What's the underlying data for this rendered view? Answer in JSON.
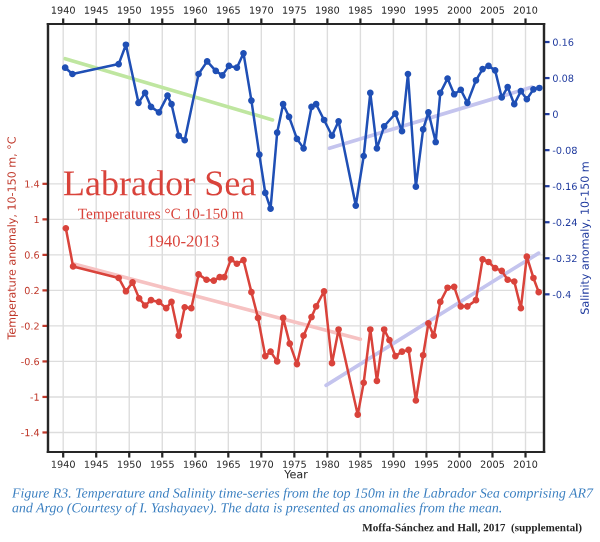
{
  "chart_data": {
    "type": "line",
    "title": "Labrador Sea",
    "subtitle": "Temperatures °C 10-150 m",
    "xlabel": "Year",
    "ylabel": "Temperature anomaly, 10-150 m, °C",
    "y2label": "Salinity anomaly, 10-150 m",
    "annotations": [
      "1940-2013",
      "Figure R3. Temperature and Salinity time-series from the top 150m in the Labrador Sea comprising AR7 and Argo (Courtesy of I. Yashayaev). The data is presented as anomalies from the mean.",
      "Moffa-Sánchez and Hall, 2017  (supplemental)"
    ],
    "xlim": [
      1937.7,
      2012.8
    ],
    "xticks": [
      1940,
      1945,
      1950,
      1955,
      1960,
      1965,
      1970,
      1975,
      1980,
      1985,
      1990,
      1995,
      2000,
      2005,
      2010
    ],
    "x2lim": [
      1937.7,
      2012.8
    ],
    "x2ticks": [
      1940,
      1945,
      1950,
      1955,
      1960,
      1965,
      1970,
      1975,
      1980,
      1985,
      1990,
      1995,
      2000,
      2005,
      2010
    ],
    "ylim": [
      -1.62,
      3.2
    ],
    "yticks": [
      -1.4,
      -1,
      -0.6,
      -0.2,
      0.2,
      0.6,
      1,
      1.4
    ],
    "y2lim": [
      -0.75,
      0.2
    ],
    "y2ticks": [
      -0.4,
      -0.32,
      -0.24,
      -0.16,
      -0.08,
      0,
      0.08,
      0.16
    ],
    "grid": true,
    "legend": false,
    "marker": "circle",
    "line_style": "solid",
    "series": [
      {
        "type": "line",
        "marker": "none",
        "color": "#bfe6a0",
        "axis": "y2",
        "x": [
          1940.3,
          1971.7
        ],
        "values": [
          0.123,
          -0.013
        ]
      },
      {
        "type": "line",
        "marker": "none",
        "color": "#c4c4ee",
        "axis": "y2",
        "x": [
          1980.3,
          2011.0
        ],
        "values": [
          -0.076,
          0.06
        ]
      },
      {
        "type": "line",
        "marker": "none",
        "color": "#f6c2c2",
        "x": [
          1941.5,
          1985.0
        ],
        "values": [
          0.5,
          -0.35
        ]
      },
      {
        "type": "line",
        "marker": "none",
        "color": "#c4c4ee",
        "x": [
          1979.8,
          2012.0
        ],
        "values": [
          -0.87,
          0.62
        ]
      },
      {
        "color": "#1f4fb5",
        "axis": "y2",
        "x": [
          1940.3,
          1941.4,
          1948.4,
          1949.5,
          1951.4,
          1952.4,
          1953.3,
          1954.5,
          1955.8,
          1956.4,
          1957.5,
          1958.4,
          1960.5,
          1961.8,
          1963.1,
          1964.1,
          1965.1,
          1966.3,
          1967.3,
          1968.5,
          1969.7,
          1970.6,
          1971.4,
          1972.4,
          1973.3,
          1974.2,
          1975.4,
          1976.4,
          1977.6,
          1978.3,
          1979.5,
          1980.7,
          1981.7,
          1984.3,
          1985.5,
          1986.5,
          1987.5,
          1988.6,
          1990.3,
          1991.3,
          1992.2,
          1993.4,
          1994.5,
          1995.3,
          1996.4,
          1997.1,
          1998.2,
          1999.2,
          2000.2,
          2001.2,
          2002.5,
          2003.5,
          2004.4,
          2005.4,
          2006.4,
          2007.3,
          2008.3,
          2009.3,
          2010.2,
          2011.2,
          2012.1
        ],
        "values": [
          0.103,
          0.089,
          0.111,
          0.154,
          0.025,
          0.047,
          0.016,
          0.004,
          0.041,
          0.022,
          -0.048,
          -0.058,
          0.089,
          0.117,
          0.096,
          0.086,
          0.107,
          0.103,
          0.135,
          0.03,
          -0.09,
          -0.175,
          -0.21,
          -0.041,
          0.022,
          -0.006,
          -0.055,
          -0.076,
          0.016,
          0.022,
          -0.013,
          -0.048,
          -0.016,
          -0.203,
          -0.093,
          0.047,
          -0.076,
          -0.027,
          0.001,
          -0.038,
          0.089,
          -0.161,
          -0.034,
          0.004,
          -0.062,
          0.047,
          0.079,
          0.044,
          0.054,
          0.025,
          0.075,
          0.1,
          0.107,
          0.097,
          0.037,
          0.06,
          0.022,
          0.051,
          0.033,
          0.055,
          0.058
        ]
      },
      {
        "color": "#d9433b",
        "x": [
          1940.4,
          1941.5,
          1948.4,
          1949.5,
          1950.5,
          1951.5,
          1952.4,
          1953.3,
          1954.5,
          1955.6,
          1956.4,
          1957.5,
          1958.4,
          1959.4,
          1960.5,
          1961.7,
          1962.8,
          1963.7,
          1964.4,
          1965.4,
          1966.3,
          1967.3,
          1968.5,
          1969.5,
          1970.6,
          1971.4,
          1972.4,
          1973.3,
          1974.3,
          1975.4,
          1976.4,
          1977.6,
          1978.3,
          1979.5,
          1980.7,
          1981.7,
          1984.6,
          1985.5,
          1986.5,
          1987.5,
          1988.6,
          1989.4,
          1990.3,
          1991.3,
          1992.3,
          1993.4,
          1994.5,
          1995.3,
          1996.1,
          1997.1,
          1998.2,
          1999.2,
          2000.2,
          2001.2,
          2002.5,
          2003.5,
          2004.4,
          2005.4,
          2006.4,
          2007.3,
          2008.3,
          2009.3,
          2010.2,
          2011.2,
          2012.0
        ],
        "values": [
          0.9,
          0.47,
          0.34,
          0.19,
          0.29,
          0.11,
          0.03,
          0.09,
          0.07,
          0.0,
          0.07,
          -0.31,
          0.01,
          0.0,
          0.38,
          0.32,
          0.31,
          0.35,
          0.35,
          0.55,
          0.5,
          0.54,
          0.18,
          -0.11,
          -0.54,
          -0.49,
          -0.6,
          -0.11,
          -0.4,
          -0.63,
          -0.31,
          -0.1,
          0.02,
          0.19,
          -0.62,
          -0.24,
          -1.2,
          -0.84,
          -0.24,
          -0.82,
          -0.24,
          -0.36,
          -0.54,
          -0.49,
          -0.47,
          -1.04,
          -0.53,
          -0.17,
          -0.31,
          0.07,
          0.23,
          0.24,
          0.02,
          0.02,
          0.09,
          0.55,
          0.52,
          0.45,
          0.42,
          0.32,
          0.3,
          0.0,
          0.58,
          0.34,
          0.18
        ]
      }
    ]
  }
}
